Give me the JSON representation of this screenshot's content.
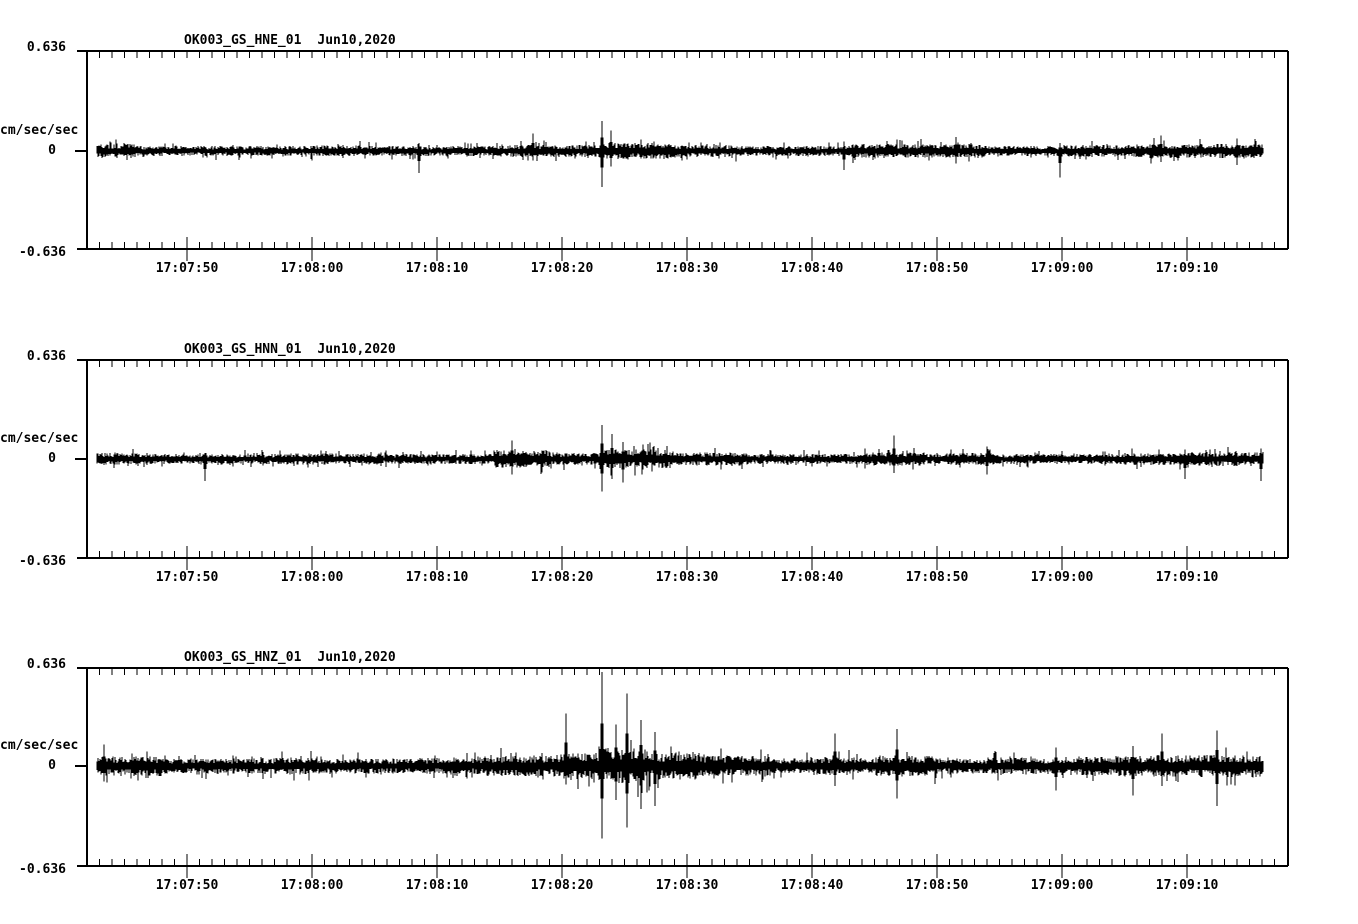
{
  "page": {
    "background_color": "#ffffff",
    "trace_color": "#000000",
    "description_visible_text_only": true
  },
  "chart_data": {
    "type": "line",
    "subtype": "seismogram-waveform",
    "grid": false,
    "legend": "none",
    "time_axis": {
      "t_ref": "17:07:00",
      "axis_start": "17:07:42",
      "axis_end": "17:09:18",
      "major_tick_labels": [
        "17:07:50",
        "17:08:00",
        "17:08:10",
        "17:08:20",
        "17:08:30",
        "17:08:40",
        "17:08:50",
        "17:09:00",
        "17:09:10"
      ],
      "major_tick_seconds": [
        50,
        60,
        70,
        80,
        90,
        100,
        110,
        120,
        130
      ],
      "major_interval_s": 10,
      "minor_interval_s": 1
    },
    "charts": [
      {
        "title": "OK003_GS_HNE_01",
        "date": "Jun10,2020",
        "ylabel": "cm/sec/sec",
        "ylim": [
          -0.636,
          0.636
        ],
        "yticks": [
          0.636,
          0,
          -0.636
        ],
        "ytick_labels": [
          "0.636",
          "0",
          "-0.636"
        ],
        "trace": {
          "start_s": 42.8,
          "end_s": 136.1,
          "noise_amp": 0.029,
          "envelope": [
            [
              42.8,
              46,
              1.4
            ],
            [
              60,
              64,
              1.15
            ],
            [
              75,
              80,
              1.25
            ],
            [
              80,
              83.2,
              1.2
            ],
            [
              83.3,
              89,
              1.6
            ],
            [
              89,
              94,
              1.2
            ],
            [
              103,
              114,
              1.35
            ],
            [
              120,
              126,
              1.2
            ],
            [
              126,
              136.1,
              1.45
            ]
          ],
          "spikes": [
            [
              68.6,
              0.05,
              0.14
            ],
            [
              77.7,
              0.11,
              0.06
            ],
            [
              83.2,
              0.19,
              0.23
            ],
            [
              83.9,
              0.13,
              0.1
            ],
            [
              102.6,
              0.06,
              0.12
            ],
            [
              111.5,
              0.09,
              0.08
            ],
            [
              119.8,
              0.05,
              0.17
            ],
            [
              127.9,
              0.1,
              0.07
            ],
            [
              134.0,
              0.08,
              0.09
            ]
          ]
        }
      },
      {
        "title": "OK003_GS_HNN_01",
        "date": "Jun10,2020",
        "ylabel": "cm/sec/sec",
        "ylim": [
          -0.636,
          0.636
        ],
        "yticks": [
          0.636,
          0,
          -0.636
        ],
        "ytick_labels": [
          "0.636",
          "0",
          "-0.636"
        ],
        "trace": {
          "start_s": 42.8,
          "end_s": 136.1,
          "noise_amp": 0.029,
          "envelope": [
            [
              42.8,
              47,
              1.2
            ],
            [
              58,
              62,
              1.15
            ],
            [
              74.5,
              79,
              1.8
            ],
            [
              79,
              83.2,
              1.3
            ],
            [
              83.3,
              89,
              1.9
            ],
            [
              89,
              95,
              1.3
            ],
            [
              104,
              109,
              1.35
            ],
            [
              110,
              115,
              1.2
            ],
            [
              125,
              130,
              1.2
            ],
            [
              130,
              136.1,
              1.4
            ]
          ],
          "spikes": [
            [
              51.4,
              0.04,
              0.14
            ],
            [
              76.0,
              0.12,
              0.1
            ],
            [
              83.2,
              0.22,
              0.21
            ],
            [
              84.0,
              0.16,
              0.13
            ],
            [
              84.9,
              0.11,
              0.15
            ],
            [
              106.6,
              0.15,
              0.09
            ],
            [
              114.0,
              0.08,
              0.1
            ],
            [
              129.8,
              0.06,
              0.13
            ],
            [
              135.9,
              0.05,
              0.14
            ]
          ]
        }
      },
      {
        "title": "OK003_GS_HNZ_01",
        "date": "Jun10,2020",
        "ylabel": "cm/sec/sec",
        "ylim": [
          -0.636,
          0.636
        ],
        "yticks": [
          0.636,
          0,
          -0.636
        ],
        "ytick_labels": [
          "0.636",
          "0",
          "-0.636"
        ],
        "trace": {
          "start_s": 42.8,
          "end_s": 136.1,
          "noise_amp": 0.045,
          "envelope": [
            [
              42.8,
              48,
              1.3
            ],
            [
              56,
              60,
              1.1
            ],
            [
              68,
              74,
              1.1
            ],
            [
              74,
              80,
              1.35
            ],
            [
              80,
              83.2,
              1.7
            ],
            [
              83.3,
              87,
              2.3
            ],
            [
              87,
              91,
              1.8
            ],
            [
              91,
              97,
              1.35
            ],
            [
              100,
              104,
              1.2
            ],
            [
              105,
              110,
              1.35
            ],
            [
              114,
              118,
              1.1
            ],
            [
              120,
              124,
              1.2
            ],
            [
              124,
              130,
              1.4
            ],
            [
              130,
              136.1,
              1.45
            ]
          ],
          "spikes": [
            [
              43.4,
              0.14,
              0.1
            ],
            [
              80.3,
              0.34,
              0.12
            ],
            [
              83.2,
              0.61,
              0.47
            ],
            [
              84.3,
              0.27,
              0.22
            ],
            [
              85.2,
              0.47,
              0.4
            ],
            [
              86.3,
              0.3,
              0.28
            ],
            [
              87.4,
              0.22,
              0.26
            ],
            [
              101.8,
              0.21,
              0.13
            ],
            [
              106.8,
              0.24,
              0.21
            ],
            [
              119.5,
              0.12,
              0.16
            ],
            [
              125.7,
              0.13,
              0.19
            ],
            [
              128.0,
              0.21,
              0.13
            ],
            [
              132.4,
              0.23,
              0.26
            ]
          ]
        }
      }
    ]
  }
}
